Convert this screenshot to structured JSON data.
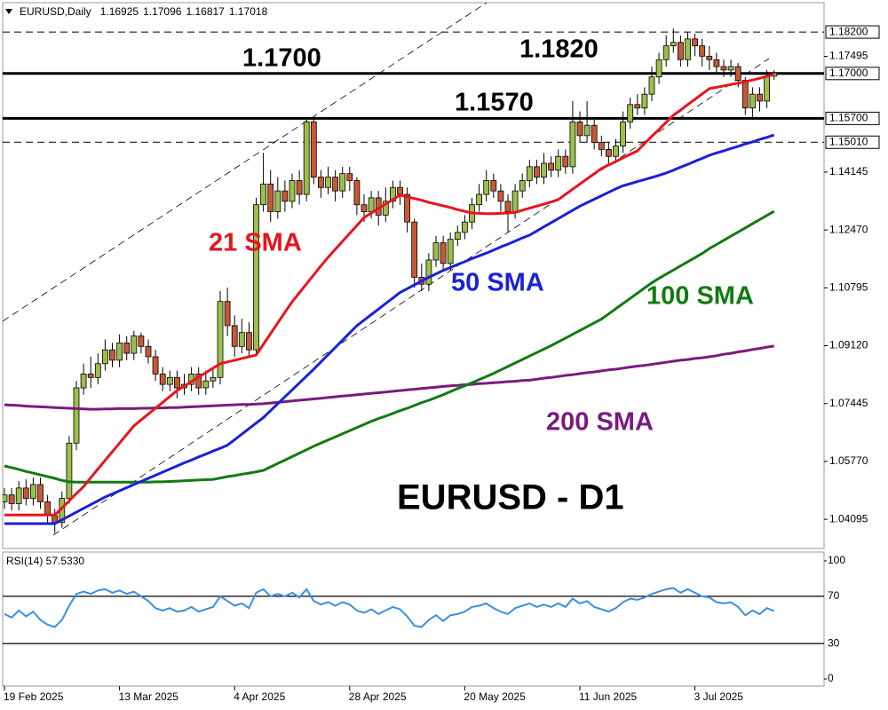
{
  "chart_data": {
    "type": "candlestick",
    "header": "EURUSD,Daily",
    "categories": [
      "19 Feb 2025",
      null,
      null,
      null,
      null,
      null,
      null,
      null,
      null,
      null,
      null,
      null,
      null,
      null,
      null,
      null,
      "13 Mar 2025",
      null,
      null,
      null,
      null,
      null,
      null,
      null,
      null,
      null,
      null,
      null,
      null,
      null,
      null,
      null,
      "4 Apr 2025",
      null,
      null,
      null,
      null,
      null,
      null,
      null,
      null,
      null,
      null,
      null,
      null,
      null,
      null,
      null,
      "28 Apr 2025",
      null,
      null,
      null,
      null,
      null,
      null,
      null,
      null,
      null,
      null,
      null,
      null,
      null,
      null,
      null,
      "20 May 2025",
      null,
      null,
      null,
      null,
      null,
      null,
      null,
      null,
      null,
      null,
      null,
      null,
      null,
      null,
      null,
      "11 Jun 2025",
      null,
      null,
      null,
      null,
      null,
      null,
      null,
      null,
      null,
      null,
      null,
      null,
      null,
      null,
      null,
      "3 Jul 2025",
      null,
      null,
      null,
      null,
      null,
      null,
      null,
      null,
      null,
      null,
      null
    ],
    "open": [
      1.046,
      1.048,
      1.0455,
      1.05,
      1.047,
      1.051,
      1.046,
      1.042,
      1.04,
      1.047,
      1.063,
      1.079,
      1.083,
      1.082,
      1.086,
      1.09,
      1.087,
      1.092,
      1.089,
      1.094,
      1.091,
      1.088,
      1.083,
      1.08,
      1.082,
      1.079,
      1.08,
      1.083,
      1.079,
      1.081,
      1.082,
      1.104,
      1.097,
      1.091,
      1.095,
      1.09,
      1.132,
      1.138,
      1.13,
      1.136,
      1.133,
      1.139,
      1.135,
      1.156,
      1.14,
      1.137,
      1.14,
      1.136,
      1.141,
      1.139,
      1.132,
      1.13,
      1.134,
      1.129,
      1.133,
      1.137,
      1.135,
      1.127,
      1.111,
      1.109,
      1.116,
      1.121,
      1.115,
      1.122,
      1.124,
      1.127,
      1.132,
      1.135,
      1.139,
      1.136,
      1.133,
      1.13,
      1.136,
      1.139,
      1.143,
      1.14,
      1.144,
      1.142,
      1.146,
      1.143,
      1.156,
      1.152,
      1.155,
      1.15,
      1.148,
      1.146,
      1.149,
      1.156,
      1.161,
      1.16,
      1.164,
      1.169,
      1.174,
      1.178,
      1.179,
      1.174,
      1.18,
      1.178,
      1.175,
      1.174,
      1.172,
      1.171,
      1.172,
      1.168,
      1.16,
      1.164,
      1.162,
      1.16925
    ],
    "high": [
      1.05,
      1.05,
      1.052,
      1.0525,
      1.053,
      1.053,
      1.048,
      1.044,
      1.049,
      1.065,
      1.081,
      1.086,
      1.088,
      1.089,
      1.093,
      1.092,
      1.0945,
      1.094,
      1.0955,
      1.095,
      1.093,
      1.09,
      1.085,
      1.084,
      1.084,
      1.083,
      1.085,
      1.085,
      1.084,
      1.085,
      1.107,
      1.108,
      1.1,
      1.099,
      1.098,
      1.134,
      1.147,
      1.142,
      1.14,
      1.139,
      1.141,
      1.142,
      1.1573,
      1.157,
      1.142,
      1.143,
      1.142,
      1.143,
      1.143,
      1.14,
      1.135,
      1.136,
      1.136,
      1.137,
      1.139,
      1.139,
      1.137,
      1.128,
      1.115,
      1.118,
      1.123,
      1.123,
      1.124,
      1.126,
      1.129,
      1.134,
      1.138,
      1.142,
      1.141,
      1.138,
      1.135,
      1.138,
      1.141,
      1.145,
      1.145,
      1.147,
      1.146,
      1.148,
      1.148,
      1.162,
      1.159,
      1.162,
      1.157,
      1.152,
      1.15,
      1.151,
      1.159,
      1.163,
      1.164,
      1.166,
      1.172,
      1.176,
      1.181,
      1.183,
      1.181,
      1.182,
      1.1815,
      1.18,
      1.178,
      1.176,
      1.174,
      1.174,
      1.173,
      1.169,
      1.166,
      1.166,
      1.171,
      1.17096
    ],
    "low": [
      1.044,
      1.0435,
      1.0435,
      1.045,
      1.045,
      1.044,
      1.04,
      1.037,
      1.0385,
      1.0455,
      1.061,
      1.077,
      1.079,
      1.08,
      1.084,
      1.085,
      1.085,
      1.087,
      1.087,
      1.089,
      1.086,
      1.081,
      1.078,
      1.078,
      1.076,
      1.077,
      1.078,
      1.077,
      1.077,
      1.079,
      1.08,
      1.094,
      1.088,
      1.089,
      1.088,
      1.089,
      1.13,
      1.127,
      1.128,
      1.13,
      1.131,
      1.132,
      1.133,
      1.138,
      1.134,
      1.135,
      1.133,
      1.134,
      1.136,
      1.129,
      1.127,
      1.128,
      1.126,
      1.127,
      1.131,
      1.132,
      1.124,
      1.108,
      1.107,
      1.107,
      1.114,
      1.113,
      1.113,
      1.12,
      1.122,
      1.125,
      1.13,
      1.133,
      1.134,
      1.13,
      1.124,
      1.128,
      1.134,
      1.137,
      1.138,
      1.138,
      1.14,
      1.14,
      1.141,
      1.141,
      1.15,
      1.15,
      1.148,
      1.146,
      1.144,
      1.144,
      1.147,
      1.154,
      1.158,
      1.158,
      1.162,
      1.167,
      1.172,
      1.176,
      1.172,
      1.172,
      1.175,
      1.172,
      1.171,
      1.17,
      1.169,
      1.169,
      1.166,
      1.158,
      1.157,
      1.159,
      1.16,
      1.16817
    ],
    "close": [
      1.048,
      1.0455,
      1.05,
      1.047,
      1.051,
      1.046,
      1.042,
      1.04,
      1.047,
      1.063,
      1.079,
      1.083,
      1.082,
      1.086,
      1.09,
      1.087,
      1.092,
      1.089,
      1.094,
      1.091,
      1.088,
      1.083,
      1.08,
      1.082,
      1.079,
      1.08,
      1.083,
      1.079,
      1.081,
      1.082,
      1.104,
      1.097,
      1.091,
      1.095,
      1.09,
      1.132,
      1.138,
      1.13,
      1.136,
      1.133,
      1.139,
      1.135,
      1.156,
      1.14,
      1.137,
      1.14,
      1.136,
      1.141,
      1.139,
      1.132,
      1.13,
      1.134,
      1.129,
      1.133,
      1.137,
      1.135,
      1.127,
      1.111,
      1.109,
      1.116,
      1.121,
      1.115,
      1.122,
      1.124,
      1.127,
      1.132,
      1.135,
      1.139,
      1.136,
      1.133,
      1.13,
      1.136,
      1.139,
      1.143,
      1.14,
      1.144,
      1.142,
      1.146,
      1.143,
      1.156,
      1.152,
      1.155,
      1.15,
      1.148,
      1.146,
      1.149,
      1.156,
      1.161,
      1.16,
      1.164,
      1.169,
      1.174,
      1.178,
      1.179,
      1.174,
      1.18,
      1.178,
      1.175,
      1.174,
      1.172,
      1.171,
      1.172,
      1.168,
      1.16,
      1.164,
      1.162,
      1.169,
      1.17018
    ],
    "up_color": "#9cbf4a",
    "down_color": "#c65a34",
    "ylim": [
      1.0325,
      1.1905
    ],
    "yticks": [
      1.04095,
      {
        "value": 1.0577,
        "label": "1.05770"
      },
      1.07445,
      {
        "value": 1.0912,
        "label": "1.09120"
      },
      1.10795,
      {
        "value": 1.1247,
        "label": "1.12470"
      },
      1.14145,
      1.17495
    ],
    "hlines": [
      {
        "value": 1.182,
        "label": "1.1820",
        "axis_label": "1.18200",
        "dashed": true
      },
      {
        "value": 1.17,
        "label": "1.1700",
        "axis_label": "1.17000",
        "dashed": false
      },
      {
        "value": 1.157,
        "label": "1.1570",
        "axis_label": "1.15700",
        "dashed": false
      },
      {
        "value": 1.1501,
        "axis_label": "1.15010",
        "dashed": true
      }
    ],
    "series": [
      {
        "name": "21 SMA",
        "color": "#e8141e",
        "values": [
          1.0422,
          1.0422,
          1.0422,
          1.0422,
          1.0422,
          1.0422,
          1.0422,
          1.0422,
          1.0442,
          1.0463,
          1.0484,
          1.0504,
          1.053,
          1.0555,
          1.058,
          1.0605,
          1.063,
          1.0655,
          1.068,
          1.0697,
          1.0714,
          1.0731,
          1.0748,
          1.0765,
          1.0782,
          1.0795,
          1.0808,
          1.0821,
          1.0834,
          1.0847,
          1.086,
          1.0865,
          1.087,
          1.0875,
          1.088,
          1.0885,
          1.0916,
          1.0947,
          1.0978,
          1.1009,
          1.1039,
          1.1065,
          1.1091,
          1.1117,
          1.1143,
          1.1168,
          1.1191,
          1.1214,
          1.1237,
          1.126,
          1.1283,
          1.1296,
          1.1309,
          1.1322,
          1.1335,
          1.1348,
          1.1343,
          1.1338,
          1.1333,
          1.1327,
          1.1322,
          1.1317,
          1.1312,
          1.1306,
          1.1301,
          1.1296,
          1.1295,
          1.1294,
          1.1294,
          1.1295,
          1.1296,
          1.1298,
          1.1304,
          1.131,
          1.1316,
          1.1322,
          1.1328,
          1.1335,
          1.135,
          1.1365,
          1.138,
          1.1395,
          1.141,
          1.1425,
          1.1435,
          1.1445,
          1.1456,
          1.1466,
          1.1476,
          1.1497,
          1.1518,
          1.1538,
          1.1559,
          1.1579,
          1.1594,
          1.161,
          1.1625,
          1.1641,
          1.1656,
          1.166,
          1.1664,
          1.1668,
          1.1672,
          1.1676,
          1.1681,
          1.1686,
          1.1692,
          1.1697
        ]
      },
      {
        "name": "50 SMA",
        "color": "#1a22d6",
        "values": [
          1.0397,
          1.0397,
          1.0397,
          1.0397,
          1.0397,
          1.0397,
          1.0397,
          1.0397,
          1.0408,
          1.0419,
          1.043,
          1.0441,
          1.0452,
          1.0463,
          1.0474,
          1.0483,
          1.0492,
          1.0501,
          1.051,
          1.0519,
          1.0528,
          1.0537,
          1.0546,
          1.0555,
          1.0564,
          1.0573,
          1.0581,
          1.059,
          1.0598,
          1.0607,
          1.0615,
          1.0624,
          1.064,
          1.0656,
          1.0672,
          1.0688,
          1.0704,
          1.0724,
          1.0744,
          1.0764,
          1.0784,
          1.0804,
          1.0824,
          1.0844,
          1.0865,
          1.0886,
          1.0907,
          1.0928,
          1.0949,
          1.097,
          1.0986,
          1.1002,
          1.1018,
          1.1034,
          1.105,
          1.1066,
          1.1077,
          1.1088,
          1.1099,
          1.111,
          1.112,
          1.113,
          1.1138,
          1.1147,
          1.1155,
          1.1164,
          1.1172,
          1.118,
          1.1189,
          1.1198,
          1.1206,
          1.1215,
          1.1224,
          1.1232,
          1.1244,
          1.1256,
          1.1268,
          1.128,
          1.1292,
          1.1304,
          1.1316,
          1.1326,
          1.1336,
          1.1346,
          1.1356,
          1.1366,
          1.1375,
          1.1381,
          1.1387,
          1.1393,
          1.1399,
          1.1405,
          1.1412,
          1.142,
          1.1429,
          1.1437,
          1.1446,
          1.1454,
          1.1463,
          1.147,
          1.1476,
          1.1483,
          1.1489,
          1.1496,
          1.1502,
          1.1509,
          1.1515,
          1.1522
        ]
      },
      {
        "name": "100 SMA",
        "color": "#137a13",
        "values": [
          1.0564,
          1.0559,
          1.0554,
          1.0548,
          1.0543,
          1.0538,
          1.0533,
          1.0528,
          1.0522,
          1.0518,
          1.0517,
          1.0517,
          1.0517,
          1.0517,
          1.0517,
          1.0517,
          1.0517,
          1.0517,
          1.0517,
          1.0517,
          1.0517,
          1.0518,
          1.0518,
          1.0519,
          1.052,
          1.0521,
          1.0522,
          1.0523,
          1.0524,
          1.0525,
          1.0529,
          1.0533,
          1.0536,
          1.054,
          1.0543,
          1.0547,
          1.0551,
          1.0561,
          1.0571,
          1.0581,
          1.0591,
          1.0601,
          1.0611,
          1.0621,
          1.063,
          1.0639,
          1.0648,
          1.0657,
          1.0666,
          1.0675,
          1.0684,
          1.0693,
          1.0701,
          1.0708,
          1.0716,
          1.0724,
          1.0731,
          1.0739,
          1.0747,
          1.0754,
          1.0762,
          1.077,
          1.0779,
          1.0788,
          1.0796,
          1.0805,
          1.0814,
          1.0823,
          1.0832,
          1.0842,
          1.0852,
          1.0862,
          1.0872,
          1.0882,
          1.0892,
          1.0902,
          1.0912,
          1.0923,
          1.0934,
          1.0945,
          1.0956,
          1.0967,
          1.0978,
          1.0989,
          1.1004,
          1.1019,
          1.1034,
          1.1049,
          1.1064,
          1.1079,
          1.1094,
          1.1107,
          1.1119,
          1.1131,
          1.1143,
          1.1155,
          1.1167,
          1.1179,
          1.1193,
          1.1205,
          1.1217,
          1.1229,
          1.1241,
          1.1253,
          1.1265,
          1.1277,
          1.1289,
          1.1301
        ]
      },
      {
        "name": "200 SMA",
        "color": "#7a1a7e",
        "values": [
          1.0741,
          1.074,
          1.0739,
          1.0737,
          1.0736,
          1.0735,
          1.0734,
          1.0733,
          1.0732,
          1.0731,
          1.073,
          1.0729,
          1.0728,
          1.0728,
          1.0729,
          1.0729,
          1.073,
          1.073,
          1.073,
          1.0731,
          1.0731,
          1.0732,
          1.0732,
          1.0733,
          1.0733,
          1.0734,
          1.0735,
          1.0736,
          1.0737,
          1.0738,
          1.0739,
          1.074,
          1.0741,
          1.0742,
          1.0742,
          1.0743,
          1.0744,
          1.0746,
          1.0748,
          1.075,
          1.0752,
          1.0754,
          1.0756,
          1.0758,
          1.076,
          1.0762,
          1.0764,
          1.0766,
          1.0768,
          1.077,
          1.0772,
          1.0774,
          1.0776,
          1.0778,
          1.078,
          1.0782,
          1.0784,
          1.0786,
          1.0788,
          1.079,
          1.0792,
          1.0794,
          1.0796,
          1.0797,
          1.0799,
          1.08,
          1.0802,
          1.0803,
          1.0805,
          1.0806,
          1.0808,
          1.0809,
          1.0811,
          1.0812,
          1.0815,
          1.0818,
          1.082,
          1.0823,
          1.0826,
          1.0828,
          1.0831,
          1.0834,
          1.0836,
          1.0839,
          1.0842,
          1.0844,
          1.0847,
          1.085,
          1.0853,
          1.0855,
          1.0858,
          1.0861,
          1.0864,
          1.0867,
          1.087,
          1.0872,
          1.0875,
          1.0877,
          1.088,
          1.0883,
          1.0887,
          1.089,
          1.0894,
          1.0897,
          1.0901,
          1.0904,
          1.0908,
          1.0911
        ]
      }
    ],
    "annotation": "EURUSD - D1",
    "rsi": {
      "label": "RSI(14) 57.5330",
      "color": "#3b8fe3",
      "ylim": [
        0,
        100
      ],
      "yticks": [
        0,
        30,
        70,
        100
      ],
      "values": [
        55,
        52,
        58,
        53,
        57,
        50,
        46,
        44,
        50,
        62,
        72,
        74,
        72,
        75,
        76,
        73,
        75,
        72,
        74,
        70,
        66,
        60,
        58,
        60,
        57,
        58,
        61,
        57,
        59,
        61,
        70,
        66,
        62,
        64,
        60,
        73,
        76,
        70,
        72,
        70,
        73,
        69,
        76,
        66,
        63,
        65,
        62,
        65,
        63,
        58,
        56,
        59,
        55,
        58,
        61,
        59,
        53,
        45,
        44,
        50,
        54,
        49,
        54,
        55,
        57,
        61,
        62,
        64,
        60,
        57,
        55,
        60,
        62,
        64,
        61,
        63,
        61,
        64,
        61,
        68,
        64,
        66,
        61,
        59,
        57,
        60,
        65,
        68,
        67,
        69,
        72,
        74,
        76,
        77,
        73,
        76,
        73,
        70,
        69,
        65,
        64,
        65,
        61,
        54,
        58,
        55,
        60,
        57.533
      ]
    }
  }
}
